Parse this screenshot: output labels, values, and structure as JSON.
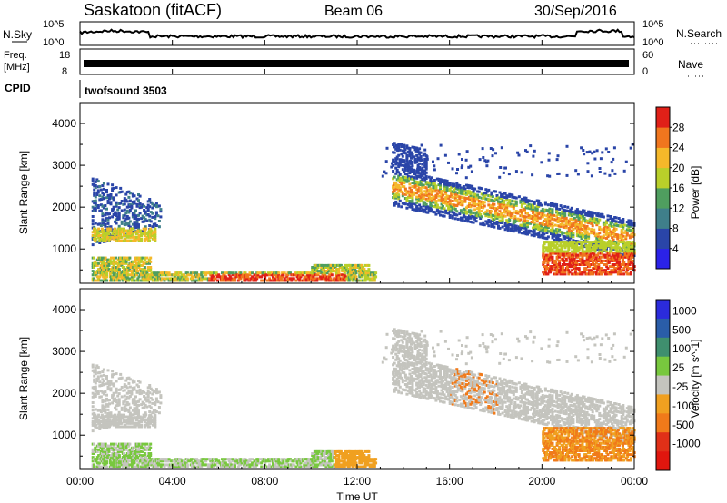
{
  "header": {
    "station": "Saskatoon (fitACF)",
    "beam": "Beam 06",
    "date": "30/Sep/2016"
  },
  "nsky": {
    "left_label": "N.Sky",
    "right_label": "N.Search",
    "ticks_left": [
      "10^5",
      "10^0"
    ],
    "ticks_right": [
      "10^5",
      "10^0"
    ]
  },
  "freq": {
    "left_label_1": "Freq.",
    "left_label_2": "[MHz]",
    "left_ticks": [
      "18",
      "8"
    ],
    "right_label": "Nave",
    "right_ticks": [
      "60",
      "0"
    ]
  },
  "cpid": {
    "label": "CPID",
    "value": "twofsound 3503"
  },
  "time_axis": {
    "label": "Time UT",
    "ticks": [
      "00:00",
      "04:00",
      "08:00",
      "12:00",
      "16:00",
      "20:00",
      "00:00"
    ]
  },
  "power_colorbar": {
    "label": "Power [dB]",
    "ticks": [
      "4",
      "8",
      "12",
      "16",
      "20",
      "24",
      "28"
    ],
    "colors": [
      "#2b22e8",
      "#2a45a8",
      "#3f7f8a",
      "#4f9e5f",
      "#b9cf2a",
      "#f5b82a",
      "#f0761e",
      "#e02018"
    ]
  },
  "velocity_colorbar": {
    "label": "Velocity [m s^-1]",
    "ticks": [
      "1000",
      "500",
      "100",
      "25",
      "-25",
      "-100",
      "-500",
      "-1000"
    ],
    "colors": [
      "#2b2bdc",
      "#2a5da8",
      "#3f8f6e",
      "#78c83e",
      "#c4c4be",
      "#f0a020",
      "#f07a1a",
      "#e03018",
      "#e0160e"
    ]
  },
  "chart_data": [
    {
      "type": "heatmap",
      "title": "",
      "xlabel": "Time UT",
      "ylabel": "Slant Range [km]",
      "xlim": [
        0,
        24
      ],
      "ylim": [
        180,
        4500
      ],
      "yticks": [
        1000,
        2000,
        3000,
        4000
      ],
      "colorbar_label": "Power [dB]",
      "colorbar_range": [
        2,
        32
      ],
      "bands": [
        {
          "t": [
            0.5,
            3.5
          ],
          "r": [
            1000,
            2800
          ],
          "level": "low-mid"
        },
        {
          "t": [
            0.5,
            12.8
          ],
          "r": [
            200,
            800
          ],
          "level": "high near 6-11"
        },
        {
          "t": [
            13.5,
            24
          ],
          "r": [
            800,
            3000
          ],
          "level": "mid-high, decreasing range"
        },
        {
          "t": [
            20,
            24
          ],
          "r": [
            400,
            1200
          ],
          "level": "high"
        }
      ]
    },
    {
      "type": "heatmap",
      "title": "",
      "xlabel": "Time UT",
      "ylabel": "Slant Range [km]",
      "xlim": [
        0,
        24
      ],
      "ylim": [
        180,
        4500
      ],
      "yticks": [
        1000,
        2000,
        3000,
        4000
      ],
      "colorbar_label": "Velocity [m s^-1]",
      "colorbar_range": [
        -1000,
        1000
      ],
      "bands": [
        {
          "t": [
            0.5,
            3.5
          ],
          "r": [
            1000,
            2800
          ],
          "level": "near zero (grey)"
        },
        {
          "t": [
            0.5,
            12.8
          ],
          "r": [
            200,
            800
          ],
          "level": "+100 to -100"
        },
        {
          "t": [
            13.5,
            24
          ],
          "r": [
            800,
            3000
          ],
          "level": "near zero, negative patches"
        },
        {
          "t": [
            20,
            24
          ],
          "r": [
            400,
            1200
          ],
          "level": "-100 to -500"
        }
      ]
    }
  ]
}
